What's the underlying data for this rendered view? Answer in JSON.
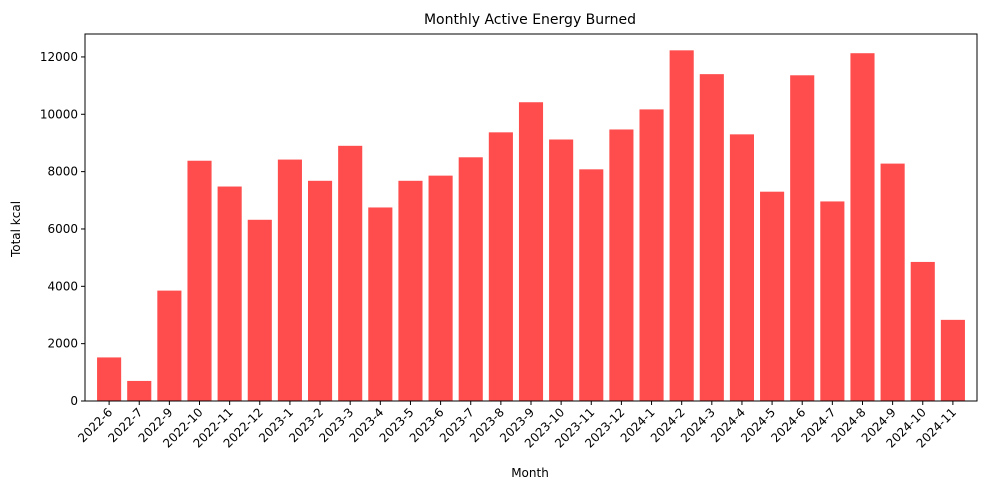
{
  "chart_data": {
    "type": "bar",
    "title": "Monthly Active Energy Burned",
    "xlabel": "Month",
    "ylabel": "Total kcal",
    "ylim": [
      0,
      12800
    ],
    "yticks": [
      0,
      2000,
      4000,
      6000,
      8000,
      10000,
      12000
    ],
    "grid": false,
    "bar_color": "#ff4d4d",
    "categories": [
      "2022-6",
      "2022-7",
      "2022-9",
      "2022-10",
      "2022-11",
      "2022-12",
      "2023-1",
      "2023-2",
      "2023-3",
      "2023-4",
      "2023-5",
      "2023-6",
      "2023-7",
      "2023-8",
      "2023-9",
      "2023-10",
      "2023-11",
      "2023-12",
      "2024-1",
      "2024-2",
      "2024-3",
      "2024-4",
      "2024-5",
      "2024-6",
      "2024-7",
      "2024-8",
      "2024-9",
      "2024-10",
      "2024-11"
    ],
    "values": [
      1520,
      700,
      3850,
      8380,
      7480,
      6320,
      8420,
      7680,
      8900,
      6750,
      7680,
      7860,
      8500,
      9370,
      10420,
      9120,
      8080,
      9470,
      10170,
      12230,
      11400,
      9300,
      7300,
      11360,
      6960,
      12130,
      8280,
      4850,
      2830
    ]
  }
}
